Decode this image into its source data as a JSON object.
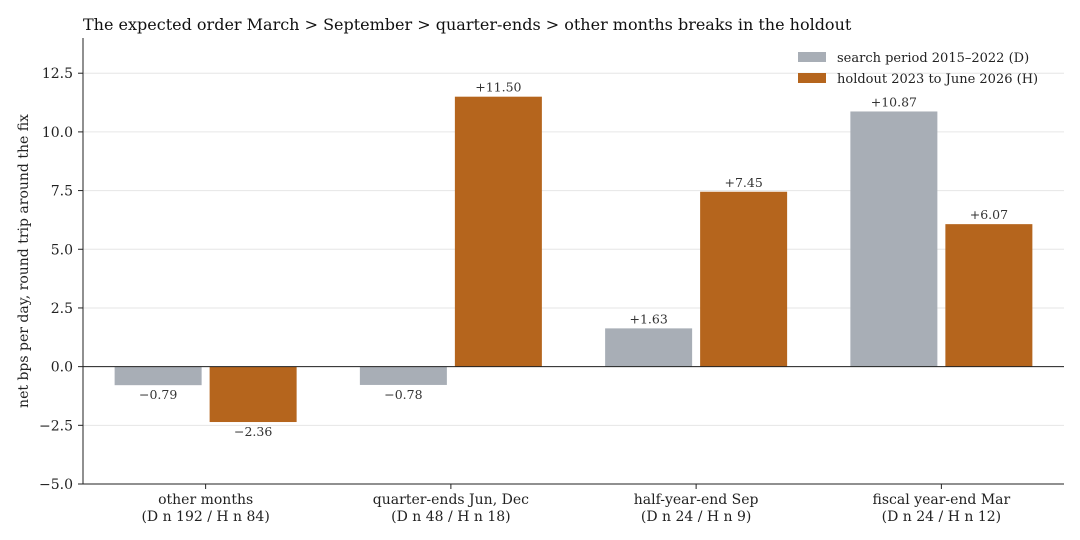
{
  "chart_data": {
    "type": "bar",
    "title": "The expected order March > September > quarter-ends > other months breaks in the holdout",
    "xlabel": "",
    "ylabel": "net bps per day, round trip around the fix",
    "ylim": [
      -5.0,
      14.0
    ],
    "yticks": [
      "−5.0",
      "−2.5",
      "0.0",
      "2.5",
      "5.0",
      "7.5",
      "10.0",
      "12.5"
    ],
    "ytick_values": [
      -5.0,
      -2.5,
      0.0,
      2.5,
      5.0,
      7.5,
      10.0,
      12.5
    ],
    "grid": true,
    "legend_position": "top-right",
    "categories": [
      {
        "line1": "other months",
        "line2": "(D n 192 / H n 84)"
      },
      {
        "line1": "quarter-ends Jun, Dec",
        "line2": "(D n 48 / H n 18)"
      },
      {
        "line1": "half-year-end Sep",
        "line2": "(D n 24 / H n 9)"
      },
      {
        "line1": "fiscal year-end Mar",
        "line2": "(D n 24 / H n 12)"
      }
    ],
    "series": [
      {
        "name": "search period 2015–2022 (D)",
        "color": "#a8aeb6",
        "values": [
          -0.79,
          -0.78,
          1.63,
          10.87
        ],
        "labels": [
          "−0.79",
          "−0.78",
          "+1.63",
          "+10.87"
        ]
      },
      {
        "name": "holdout 2023 to June 2026 (H)",
        "color": "#b5651d",
        "values": [
          -2.36,
          11.5,
          7.45,
          6.07
        ],
        "labels": [
          "−2.36",
          "+11.50",
          "+7.45",
          "+6.07"
        ]
      }
    ]
  }
}
